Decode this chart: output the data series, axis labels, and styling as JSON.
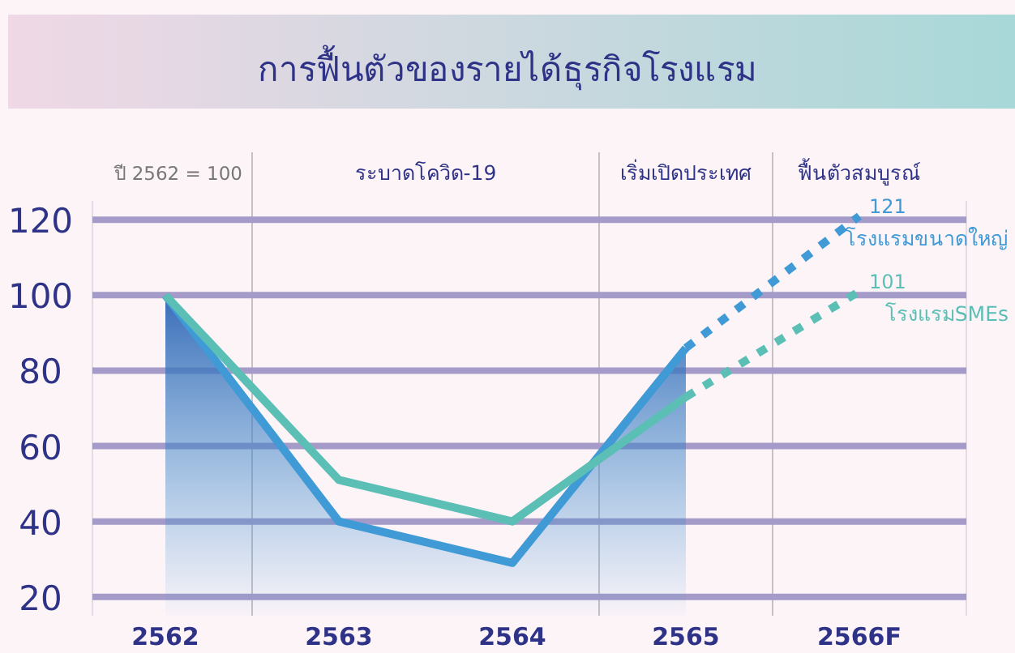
{
  "chart_data": {
    "type": "line",
    "title": "การฟื้นตัวของรายได้ธุรกิจโรงแรม",
    "categories": [
      "2562",
      "2563",
      "2564",
      "2565",
      "2566F"
    ],
    "series": [
      {
        "type": "area",
        "color": "#3f9ad6",
        "values": [
          100,
          40,
          29,
          86,
          null
        ]
      },
      {
        "color": "#5bbfb5",
        "values": [
          100,
          51,
          40,
          73,
          null
        ]
      },
      {
        "name": "โรงแรมขนาดใหญ่",
        "color": "#3f9ad6",
        "line_style": "dotted",
        "values": [
          null,
          null,
          null,
          86,
          121
        ],
        "value_labels": [
          null,
          null,
          null,
          null,
          "121"
        ]
      },
      {
        "name": "โรงแรมSMEs",
        "color": "#5bbfb5",
        "line_style": "dotted",
        "values": [
          null,
          null,
          null,
          73,
          101
        ],
        "value_labels": [
          null,
          null,
          null,
          null,
          "101"
        ]
      }
    ],
    "ylim": [
      15,
      125
    ],
    "yticks": [
      20,
      40,
      60,
      80,
      100,
      120
    ],
    "grid": "y",
    "annotations": [
      "ปี 2562 = 100",
      "ระบาดโควิด-19",
      "เริ่มเปิดประเทศ",
      "ฟื้นตัวสมบูรณ์"
    ]
  }
}
